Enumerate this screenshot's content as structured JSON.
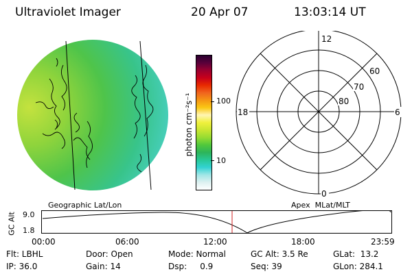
{
  "header": {
    "instrument": "Ultraviolet Imager",
    "date": "20 Apr 07",
    "time": "13:03:14 UT"
  },
  "colorbar": {
    "unit_label": "photon cm⁻²s⁻¹",
    "ticks": [
      "100",
      "10"
    ],
    "colors_top_to_bottom": [
      "#2a0030",
      "#5a003a",
      "#9a0030",
      "#c8001a",
      "#e82a00",
      "#f0641e",
      "#f59614",
      "#fac814",
      "#fff5b4",
      "#f0f03c",
      "#c8e632",
      "#96dc32",
      "#50c83c",
      "#2db45a",
      "#28c896",
      "#32d2d2",
      "#a0e6e6",
      "#dcf0f0",
      "#ffffff"
    ]
  },
  "polar_grid": {
    "mlt_labels": {
      "top": "12",
      "left": "18",
      "right": "6",
      "bottom": "0"
    },
    "lat_labels": [
      "60",
      "70",
      "80"
    ]
  },
  "altitude_plot": {
    "left_title": "Geographic Lat/Lon",
    "right_title": "Apex  MLat/MLT",
    "y_axis_label": "GC Alt",
    "y_ticks": [
      "9.0",
      "1.8"
    ],
    "x_ticks": [
      "00:00",
      "06:00",
      "12:00",
      "18:00",
      "23:59"
    ],
    "marker_color": "#d02020"
  },
  "status": {
    "row1": [
      {
        "label": "Flt: LBHL"
      },
      {
        "label": "Door: Open"
      },
      {
        "label": "Mode: Normal"
      },
      {
        "label": "GC Alt: 3.5 Re"
      },
      {
        "label": "GLat:  13.2"
      }
    ],
    "row2": [
      {
        "label": "IP: 36.0"
      },
      {
        "label": "Gain: 14"
      },
      {
        "label": "Dsp:     0.9"
      },
      {
        "label": "Seq: 39"
      },
      {
        "label": "GLon: 284.1"
      }
    ]
  }
}
